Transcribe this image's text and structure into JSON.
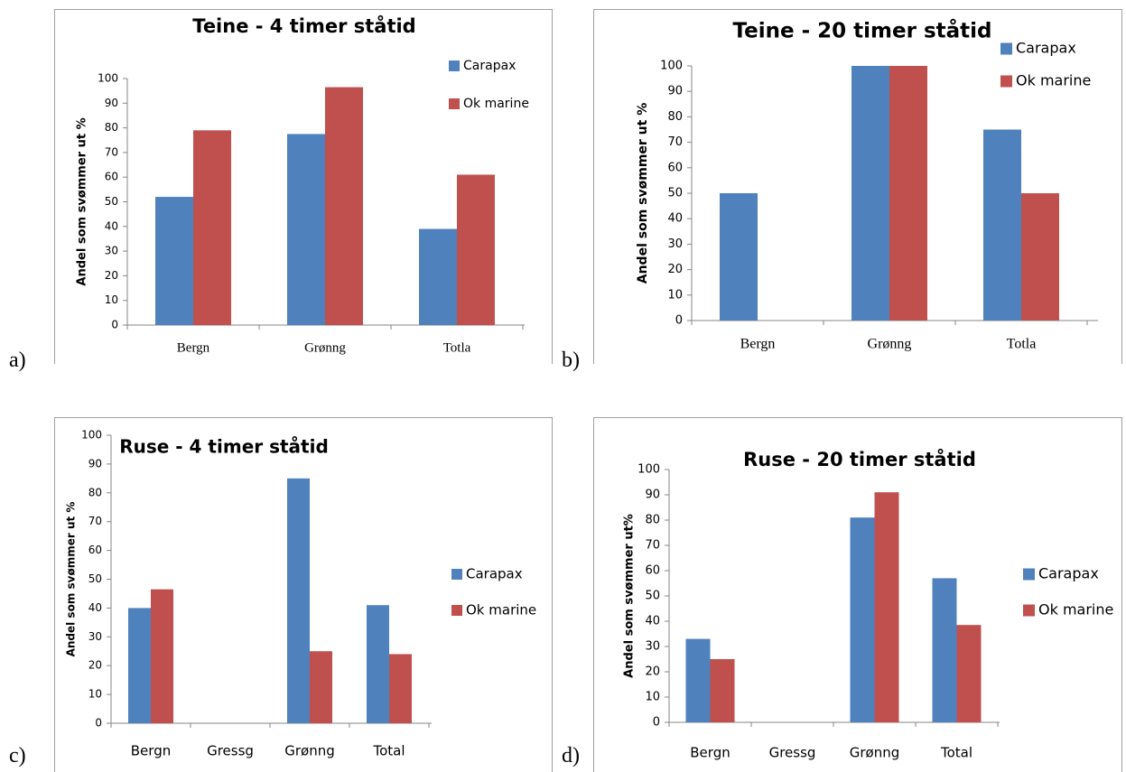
{
  "panel_labels": [
    "a)",
    "b)",
    "c)",
    "d)"
  ],
  "colors": {
    "carapax": "#4f81bd",
    "ok_marine": "#c0504d",
    "axis": "#868686",
    "frame": "#a0a0a0"
  },
  "chart_data": [
    {
      "type": "bar",
      "title": "Teine - 4 timer ståtid",
      "ylabel": "Andel som svømmer ut %",
      "xlabel": "",
      "ylim": [
        0,
        100
      ],
      "ytick_step": 10,
      "grid": false,
      "legend_position": "top-right",
      "categories": [
        "Bergn",
        "Grønng",
        "Totla"
      ],
      "series": [
        {
          "name": "Carapax",
          "color": "#4f81bd",
          "values": [
            52,
            77.5,
            39
          ]
        },
        {
          "name": "Ok marine",
          "color": "#c0504d",
          "values": [
            79,
            96.5,
            61
          ]
        }
      ]
    },
    {
      "type": "bar",
      "title": "Teine - 20 timer ståtid",
      "ylabel": "Andel som svømmer ut %",
      "xlabel": "",
      "ylim": [
        0,
        100
      ],
      "ytick_step": 10,
      "grid": false,
      "legend_position": "top-right",
      "categories": [
        "Bergn",
        "Grønng",
        "Totla"
      ],
      "series": [
        {
          "name": "Carapax",
          "color": "#4f81bd",
          "values": [
            50,
            100,
            75
          ]
        },
        {
          "name": "Ok marine",
          "color": "#c0504d",
          "values": [
            0,
            100,
            50
          ]
        }
      ]
    },
    {
      "type": "bar",
      "title": "Ruse - 4 timer ståtid",
      "ylabel": "Andel som svømmer ut %",
      "xlabel": "",
      "ylim": [
        0,
        100
      ],
      "ytick_step": 10,
      "grid": false,
      "legend_position": "right",
      "categories": [
        "Bergn",
        "Gressg",
        "Grønng",
        "Total"
      ],
      "series": [
        {
          "name": "Carapax",
          "color": "#4f81bd",
          "values": [
            40,
            0,
            85,
            41
          ]
        },
        {
          "name": "Ok marine",
          "color": "#c0504d",
          "values": [
            46.5,
            0,
            25,
            24
          ]
        }
      ]
    },
    {
      "type": "bar",
      "title": "Ruse - 20 timer ståtid",
      "ylabel": "Andel som svømmer ut%",
      "xlabel": "",
      "ylim": [
        0,
        100
      ],
      "ytick_step": 10,
      "grid": false,
      "legend_position": "right",
      "categories": [
        "Bergn",
        "Gressg",
        "Grønng",
        "Total"
      ],
      "series": [
        {
          "name": "Carapax",
          "color": "#4f81bd",
          "values": [
            33,
            0,
            81,
            57
          ]
        },
        {
          "name": "Ok marine",
          "color": "#c0504d",
          "values": [
            25,
            0,
            91,
            38.5
          ]
        }
      ]
    }
  ]
}
